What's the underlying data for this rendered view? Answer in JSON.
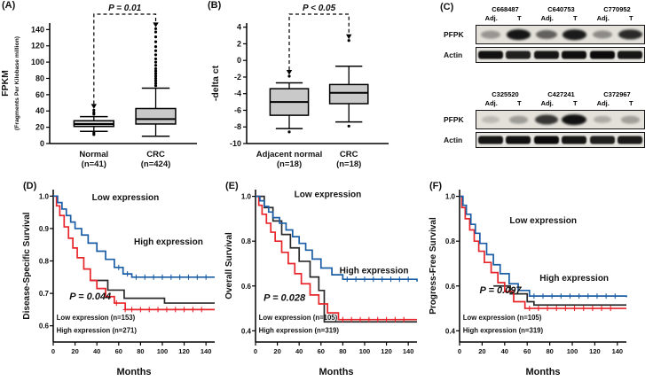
{
  "panel_labels": {
    "A": "(A)",
    "B": "(B)",
    "C": "(C)",
    "D": "(D)",
    "E": "(E)",
    "F": "(F)"
  },
  "western": {
    "row_labels": {
      "top": "PFPK",
      "bottom": "Actin"
    },
    "groups": [
      {
        "samples": [
          "C668487",
          "C640753",
          "C770952"
        ],
        "lane_labels": [
          "Adj.",
          "T"
        ],
        "pfpk_intensity": [
          0.35,
          0.95,
          0.6,
          0.92,
          0.4,
          0.85
        ],
        "actin_intensity": [
          0.92,
          0.85,
          0.9,
          0.93,
          0.95,
          0.9
        ]
      },
      {
        "samples": [
          "C325520",
          "C427241",
          "C372967"
        ],
        "lane_labels": [
          "Adj.",
          "T"
        ],
        "pfpk_intensity": [
          0.18,
          0.32,
          0.8,
          0.97,
          0.25,
          0.3
        ],
        "actin_intensity": [
          0.9,
          0.92,
          0.95,
          0.9,
          0.85,
          0.88
        ]
      }
    ]
  },
  "chart_data": [
    {
      "id": "A",
      "type": "box",
      "ylabel": [
        "FPKM",
        "(Fragments Per Kilobase million)"
      ],
      "ylim": [
        0,
        148
      ],
      "yticks": [
        0,
        20,
        40,
        60,
        80,
        100,
        120,
        140
      ],
      "categories": [
        [
          "Normal",
          "(n=41)"
        ],
        [
          "CRC",
          "(n=424)"
        ]
      ],
      "p_label": "P = 0.01",
      "boxes": [
        {
          "whisker_low": 15,
          "q1": 21,
          "median": 24,
          "q3": 28,
          "whisker_high": 33,
          "outliers": [
            11,
            13,
            36,
            38,
            41
          ]
        },
        {
          "whisker_low": 9,
          "q1": 24,
          "median": 30,
          "q3": 43,
          "whisker_high": 68,
          "outliers": [
            71,
            74,
            77,
            80,
            83,
            86,
            89,
            92,
            96,
            100,
            104,
            109,
            114,
            119,
            125,
            131,
            137,
            141
          ]
        }
      ]
    },
    {
      "id": "B",
      "type": "box",
      "ylabel": [
        "-delta ct"
      ],
      "ylim": [
        -10,
        4.5
      ],
      "yticks": [
        -10,
        -8,
        -6,
        -4,
        -2,
        0,
        2,
        4
      ],
      "categories": [
        [
          "Adjacent normal",
          "(n=18)"
        ],
        [
          "CRC",
          "(n=18)"
        ]
      ],
      "p_label": "P < 0.05",
      "boxes": [
        {
          "whisker_low": -8.2,
          "q1": -6.6,
          "median": -5.0,
          "q3": -3.4,
          "whisker_high": -2.7,
          "outliers": [
            -8.6,
            -1.9
          ]
        },
        {
          "whisker_low": -7.4,
          "q1": -5.2,
          "median": -3.9,
          "q3": -2.9,
          "whisker_high": -0.7,
          "outliers": [
            -7.9,
            2.4
          ]
        }
      ]
    },
    {
      "id": "D",
      "type": "line",
      "ylabel": "Disease-Specific Survival",
      "xlabel": "Months",
      "ylim": [
        0.55,
        1.02
      ],
      "yticks": [
        0.6,
        0.7,
        0.8,
        0.9,
        1.0
      ],
      "xlim": [
        0,
        148
      ],
      "xticks": [
        0,
        20,
        40,
        60,
        80,
        100,
        120,
        140
      ],
      "p_label": "P = 0.044",
      "p_color": "#e8252a",
      "curve_labels": [
        {
          "text": "Low expression",
          "color": "#1b5ea6"
        },
        {
          "text": "High expression",
          "color": "#e8252a"
        }
      ],
      "legend": [
        {
          "text": "Low expression (n=153)",
          "color": "#1a1a1a"
        },
        {
          "text": "High expression (n=271)",
          "color": "#e8252a"
        }
      ],
      "series": [
        {
          "name": "Low expression",
          "color": "#1b5ea6",
          "x": [
            0,
            4,
            8,
            12,
            16,
            20,
            26,
            32,
            40,
            48,
            56,
            64,
            72,
            148
          ],
          "y": [
            1.0,
            0.98,
            0.96,
            0.94,
            0.92,
            0.9,
            0.88,
            0.855,
            0.83,
            0.805,
            0.78,
            0.76,
            0.75,
            0.75
          ],
          "censor_x": [
            60,
            68,
            76,
            84,
            92,
            100,
            108,
            116,
            124,
            132,
            140
          ]
        },
        {
          "name": "High expression",
          "color": "#e8252a",
          "x": [
            0,
            3,
            6,
            10,
            14,
            18,
            22,
            28,
            34,
            40,
            48,
            56,
            66,
            148
          ],
          "y": [
            1.0,
            0.97,
            0.94,
            0.905,
            0.87,
            0.84,
            0.81,
            0.775,
            0.74,
            0.715,
            0.69,
            0.67,
            0.65,
            0.65
          ],
          "censor_x": [
            58,
            66,
            72,
            80,
            88,
            96,
            104,
            112,
            120,
            128,
            136
          ]
        },
        {
          "name": "",
          "color": "#2a2a2a",
          "x": [
            35,
            50,
            65,
            102,
            148
          ],
          "y": [
            0.74,
            0.71,
            0.685,
            0.67,
            0.67
          ],
          "censor_x": []
        }
      ]
    },
    {
      "id": "E",
      "type": "line",
      "ylabel": "Overall Survival",
      "xlabel": "Months",
      "ylim": [
        0.35,
        1.03
      ],
      "yticks": [
        0.4,
        0.6,
        0.8,
        1.0
      ],
      "xlim": [
        0,
        148
      ],
      "xticks": [
        0,
        20,
        40,
        60,
        80,
        100,
        120,
        140
      ],
      "p_label": "P = 0.028",
      "p_color": "#e8252a",
      "curve_labels": [
        {
          "text": "Low expression",
          "color": "#1b5ea6"
        },
        {
          "text": "High expression",
          "color": "#e8252a"
        }
      ],
      "legend": [
        {
          "text": "Low expression (n=105)",
          "color": "#1a1a1a"
        },
        {
          "text": "High expression (n=319)",
          "color": "#e8252a"
        }
      ],
      "series": [
        {
          "name": "Low expression",
          "color": "#1b5ea6",
          "x": [
            0,
            4,
            8,
            12,
            16,
            22,
            28,
            34,
            40,
            46,
            52,
            60,
            70,
            80,
            148
          ],
          "y": [
            1.0,
            0.98,
            0.955,
            0.93,
            0.905,
            0.88,
            0.85,
            0.82,
            0.79,
            0.76,
            0.72,
            0.68,
            0.65,
            0.63,
            0.62
          ],
          "censor_x": [
            84,
            92,
            100,
            108,
            116,
            124,
            132,
            140
          ]
        },
        {
          "name": "High expression",
          "color": "#e8252a",
          "x": [
            0,
            3,
            6,
            10,
            14,
            18,
            24,
            30,
            36,
            42,
            50,
            58,
            66,
            76,
            148
          ],
          "y": [
            1.0,
            0.96,
            0.92,
            0.88,
            0.84,
            0.8,
            0.75,
            0.7,
            0.655,
            0.61,
            0.56,
            0.52,
            0.48,
            0.45,
            0.45
          ],
          "censor_x": [
            80,
            88,
            96,
            104,
            112,
            120,
            128,
            136
          ]
        },
        {
          "name": "",
          "color": "#2a2a2a",
          "x": [
            0,
            8,
            16,
            24,
            32,
            40,
            50,
            58,
            63,
            148
          ],
          "y": [
            1.0,
            0.95,
            0.89,
            0.83,
            0.77,
            0.71,
            0.64,
            0.58,
            0.44,
            0.44
          ],
          "censor_x": []
        }
      ]
    },
    {
      "id": "F",
      "type": "line",
      "ylabel": "Progress-Free Survival",
      "xlabel": "Months",
      "ylim": [
        0.35,
        1.03
      ],
      "yticks": [
        0.4,
        0.6,
        0.8,
        1.0
      ],
      "xlim": [
        0,
        148
      ],
      "xticks": [
        0,
        20,
        40,
        60,
        80,
        100,
        120,
        140
      ],
      "p_label": "P = 0.097",
      "p_color": "#1a1a1a",
      "curve_labels": [
        {
          "text": "Low expression",
          "color": "#1b5ea6"
        },
        {
          "text": "High expression",
          "color": "#e8252a"
        }
      ],
      "legend": [
        {
          "text": "Low expression (n=105)",
          "color": "#1a1a1a"
        },
        {
          "text": "High expression (n=319)",
          "color": "#e8252a"
        }
      ],
      "series": [
        {
          "name": "Low expression",
          "color": "#1b5ea6",
          "x": [
            0,
            3,
            6,
            10,
            14,
            18,
            24,
            30,
            36,
            44,
            52,
            62,
            148
          ],
          "y": [
            1.0,
            0.96,
            0.92,
            0.875,
            0.835,
            0.79,
            0.74,
            0.695,
            0.655,
            0.61,
            0.58,
            0.555,
            0.55
          ],
          "censor_x": [
            66,
            74,
            82,
            90,
            98,
            106,
            114,
            122,
            130,
            138
          ]
        },
        {
          "name": "High expression",
          "color": "#e8252a",
          "x": [
            0,
            2,
            5,
            9,
            13,
            17,
            22,
            28,
            34,
            40,
            48,
            58,
            148
          ],
          "y": [
            1.0,
            0.95,
            0.9,
            0.85,
            0.8,
            0.755,
            0.705,
            0.66,
            0.615,
            0.575,
            0.53,
            0.5,
            0.5
          ],
          "censor_x": [
            62,
            70,
            78,
            86,
            94,
            102,
            110,
            118,
            126,
            134
          ]
        },
        {
          "name": "",
          "color": "#2a2a2a",
          "x": [
            30,
            45,
            60,
            66,
            148
          ],
          "y": [
            0.6,
            0.565,
            0.53,
            0.515,
            0.515
          ],
          "censor_x": []
        }
      ]
    }
  ]
}
